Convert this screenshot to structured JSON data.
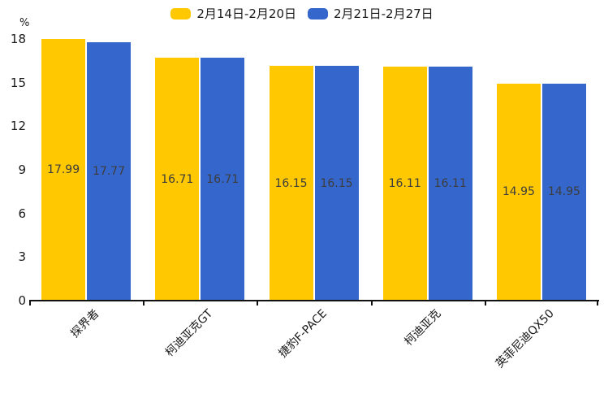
{
  "chart_data": {
    "type": "bar",
    "title": "",
    "ylabel": "%",
    "categories": [
      "探界者",
      "柯迪亚克GT",
      "捷豹F-PACE",
      "柯迪亚克",
      "英菲尼迪QX50"
    ],
    "series": [
      {
        "name": "2月14日-2月20日",
        "color": "#FFC800",
        "values": [
          17.99,
          16.71,
          16.15,
          16.11,
          14.95
        ]
      },
      {
        "name": "2月21日-2月27日",
        "color": "#3566CB",
        "values": [
          17.77,
          16.71,
          16.15,
          16.11,
          14.95
        ]
      }
    ],
    "yticks": [
      0,
      3,
      6,
      9,
      12,
      15,
      18
    ],
    "ylim": [
      0,
      18
    ],
    "legend_position": "top",
    "grid": false,
    "value_label_position": "inside-center",
    "xlabel_rotation_deg": -45,
    "axis_color": "#111111",
    "text_color": "#1a1a1a",
    "value_label_color": "#3d3d3d"
  }
}
